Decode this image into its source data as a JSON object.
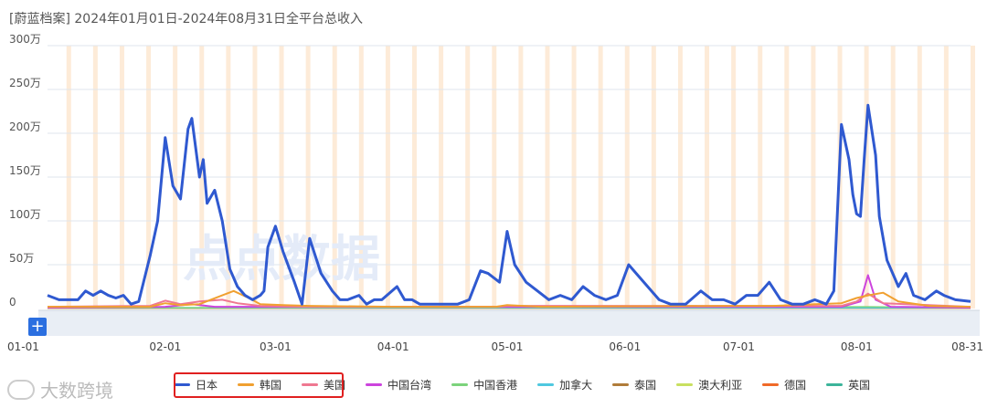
{
  "title": "[蔚蓝档案]  2024年01月01日-2024年08月31日全平台总收入",
  "watermark_center": "点点数据",
  "watermark_bottom": "大数跨境",
  "add_button": "+",
  "chart_data": {
    "type": "line",
    "title": "[蔚蓝档案]  2024年01月01日-2024年08月31日全平台总收入",
    "ylim": [
      0,
      3000000
    ],
    "yticks": [
      {
        "value": 0,
        "label": "0"
      },
      {
        "value": 500000,
        "label": "50万"
      },
      {
        "value": 1000000,
        "label": "100万"
      },
      {
        "value": 1500000,
        "label": "150万"
      },
      {
        "value": 2000000,
        "label": "200万"
      },
      {
        "value": 2500000,
        "label": "250万"
      },
      {
        "value": 3000000,
        "label": "300万"
      }
    ],
    "xrange": [
      "2024-01-01",
      "2024-08-31"
    ],
    "xticks": [
      {
        "date": "2024-01-01",
        "label": "01-01"
      },
      {
        "date": "2024-02-01",
        "label": "02-01"
      },
      {
        "date": "2024-03-01",
        "label": "03-01"
      },
      {
        "date": "2024-04-01",
        "label": "04-01"
      },
      {
        "date": "2024-05-01",
        "label": "05-01"
      },
      {
        "date": "2024-06-01",
        "label": "06-01"
      },
      {
        "date": "2024-07-01",
        "label": "07-01"
      },
      {
        "date": "2024-08-01",
        "label": "08-01"
      },
      {
        "date": "2024-08-31",
        "label": "08-31"
      }
    ],
    "grid": true,
    "legend_position": "bottom",
    "event_bands_color": "#fdebd8",
    "series": [
      {
        "name": "日本",
        "color": "#2f59d0",
        "width": 3,
        "highlighted": true,
        "points": [
          [
            "2024-01-01",
            150000
          ],
          [
            "2024-01-04",
            100000
          ],
          [
            "2024-01-06",
            100000
          ],
          [
            "2024-01-09",
            100000
          ],
          [
            "2024-01-11",
            200000
          ],
          [
            "2024-01-13",
            150000
          ],
          [
            "2024-01-15",
            200000
          ],
          [
            "2024-01-17",
            150000
          ],
          [
            "2024-01-19",
            120000
          ],
          [
            "2024-01-21",
            150000
          ],
          [
            "2024-01-23",
            50000
          ],
          [
            "2024-01-25",
            80000
          ],
          [
            "2024-01-28",
            600000
          ],
          [
            "2024-01-30",
            1000000
          ],
          [
            "2024-02-01",
            1950000
          ],
          [
            "2024-02-03",
            1400000
          ],
          [
            "2024-02-05",
            1250000
          ],
          [
            "2024-02-07",
            2050000
          ],
          [
            "2024-02-08",
            2170000
          ],
          [
            "2024-02-10",
            1500000
          ],
          [
            "2024-02-11",
            1700000
          ],
          [
            "2024-02-12",
            1200000
          ],
          [
            "2024-02-14",
            1350000
          ],
          [
            "2024-02-16",
            1000000
          ],
          [
            "2024-02-18",
            450000
          ],
          [
            "2024-02-20",
            250000
          ],
          [
            "2024-02-22",
            150000
          ],
          [
            "2024-02-24",
            100000
          ],
          [
            "2024-02-26",
            150000
          ],
          [
            "2024-02-27",
            200000
          ],
          [
            "2024-02-28",
            700000
          ],
          [
            "2024-03-01",
            940000
          ],
          [
            "2024-03-03",
            650000
          ],
          [
            "2024-03-06",
            300000
          ],
          [
            "2024-03-08",
            50000
          ],
          [
            "2024-03-10",
            800000
          ],
          [
            "2024-03-13",
            400000
          ],
          [
            "2024-03-16",
            200000
          ],
          [
            "2024-03-18",
            100000
          ],
          [
            "2024-03-20",
            100000
          ],
          [
            "2024-03-23",
            150000
          ],
          [
            "2024-03-25",
            50000
          ],
          [
            "2024-03-27",
            100000
          ],
          [
            "2024-03-29",
            100000
          ],
          [
            "2024-04-02",
            250000
          ],
          [
            "2024-04-04",
            100000
          ],
          [
            "2024-04-06",
            100000
          ],
          [
            "2024-04-08",
            50000
          ],
          [
            "2024-04-12",
            50000
          ],
          [
            "2024-04-15",
            50000
          ],
          [
            "2024-04-18",
            50000
          ],
          [
            "2024-04-21",
            100000
          ],
          [
            "2024-04-24",
            430000
          ],
          [
            "2024-04-26",
            400000
          ],
          [
            "2024-04-29",
            300000
          ],
          [
            "2024-05-01",
            880000
          ],
          [
            "2024-05-03",
            500000
          ],
          [
            "2024-05-06",
            300000
          ],
          [
            "2024-05-09",
            200000
          ],
          [
            "2024-05-12",
            100000
          ],
          [
            "2024-05-15",
            150000
          ],
          [
            "2024-05-18",
            100000
          ],
          [
            "2024-05-21",
            250000
          ],
          [
            "2024-05-24",
            150000
          ],
          [
            "2024-05-27",
            100000
          ],
          [
            "2024-05-30",
            150000
          ],
          [
            "2024-06-02",
            500000
          ],
          [
            "2024-06-04",
            400000
          ],
          [
            "2024-06-07",
            250000
          ],
          [
            "2024-06-10",
            100000
          ],
          [
            "2024-06-13",
            50000
          ],
          [
            "2024-06-17",
            50000
          ],
          [
            "2024-06-21",
            200000
          ],
          [
            "2024-06-24",
            100000
          ],
          [
            "2024-06-27",
            100000
          ],
          [
            "2024-06-30",
            50000
          ],
          [
            "2024-07-03",
            150000
          ],
          [
            "2024-07-06",
            150000
          ],
          [
            "2024-07-09",
            300000
          ],
          [
            "2024-07-12",
            100000
          ],
          [
            "2024-07-15",
            50000
          ],
          [
            "2024-07-18",
            50000
          ],
          [
            "2024-07-21",
            100000
          ],
          [
            "2024-07-24",
            50000
          ],
          [
            "2024-07-26",
            200000
          ],
          [
            "2024-07-28",
            2100000
          ],
          [
            "2024-07-30",
            1700000
          ],
          [
            "2024-07-31",
            1300000
          ],
          [
            "2024-08-01",
            1080000
          ],
          [
            "2024-08-02",
            1050000
          ],
          [
            "2024-08-03",
            1700000
          ],
          [
            "2024-08-04",
            2320000
          ],
          [
            "2024-08-06",
            1750000
          ],
          [
            "2024-08-07",
            1050000
          ],
          [
            "2024-08-09",
            550000
          ],
          [
            "2024-08-11",
            350000
          ],
          [
            "2024-08-12",
            250000
          ],
          [
            "2024-08-14",
            400000
          ],
          [
            "2024-08-16",
            150000
          ],
          [
            "2024-08-19",
            100000
          ],
          [
            "2024-08-22",
            200000
          ],
          [
            "2024-08-24",
            150000
          ],
          [
            "2024-08-27",
            100000
          ],
          [
            "2024-08-31",
            80000
          ]
        ]
      },
      {
        "name": "韩国",
        "color": "#f0a030",
        "width": 2,
        "highlighted": true,
        "points": [
          [
            "2024-01-01",
            20000
          ],
          [
            "2024-01-28",
            20000
          ],
          [
            "2024-02-01",
            60000
          ],
          [
            "2024-02-05",
            40000
          ],
          [
            "2024-02-10",
            50000
          ],
          [
            "2024-02-16",
            150000
          ],
          [
            "2024-02-19",
            200000
          ],
          [
            "2024-02-23",
            120000
          ],
          [
            "2024-02-26",
            50000
          ],
          [
            "2024-03-03",
            40000
          ],
          [
            "2024-03-10",
            30000
          ],
          [
            "2024-04-01",
            20000
          ],
          [
            "2024-04-28",
            20000
          ],
          [
            "2024-05-01",
            40000
          ],
          [
            "2024-05-10",
            20000
          ],
          [
            "2024-07-01",
            30000
          ],
          [
            "2024-07-10",
            30000
          ],
          [
            "2024-07-28",
            60000
          ],
          [
            "2024-08-01",
            120000
          ],
          [
            "2024-08-04",
            150000
          ],
          [
            "2024-08-08",
            180000
          ],
          [
            "2024-08-12",
            80000
          ],
          [
            "2024-08-20",
            30000
          ],
          [
            "2024-08-31",
            20000
          ]
        ]
      },
      {
        "name": "美国",
        "color": "#ef7891",
        "width": 2,
        "highlighted": true,
        "points": [
          [
            "2024-01-01",
            20000
          ],
          [
            "2024-01-28",
            30000
          ],
          [
            "2024-02-01",
            90000
          ],
          [
            "2024-02-05",
            50000
          ],
          [
            "2024-02-10",
            80000
          ],
          [
            "2024-02-16",
            100000
          ],
          [
            "2024-02-20",
            60000
          ],
          [
            "2024-02-26",
            30000
          ],
          [
            "2024-03-10",
            20000
          ],
          [
            "2024-04-28",
            20000
          ],
          [
            "2024-05-01",
            30000
          ],
          [
            "2024-07-28",
            30000
          ],
          [
            "2024-08-01",
            80000
          ],
          [
            "2024-08-04",
            170000
          ],
          [
            "2024-08-08",
            60000
          ],
          [
            "2024-08-31",
            20000
          ]
        ]
      },
      {
        "name": "中国台湾",
        "color": "#cc44dd",
        "width": 2,
        "points": [
          [
            "2024-01-01",
            10000
          ],
          [
            "2024-02-01",
            20000
          ],
          [
            "2024-02-08",
            50000
          ],
          [
            "2024-02-14",
            20000
          ],
          [
            "2024-07-28",
            20000
          ],
          [
            "2024-08-02",
            80000
          ],
          [
            "2024-08-04",
            380000
          ],
          [
            "2024-08-06",
            100000
          ],
          [
            "2024-08-10",
            20000
          ],
          [
            "2024-08-31",
            10000
          ]
        ]
      },
      {
        "name": "中国香港",
        "color": "#7cd37c",
        "width": 1.5,
        "points": [
          [
            "2024-01-01",
            8000
          ],
          [
            "2024-08-04",
            20000
          ],
          [
            "2024-08-31",
            8000
          ]
        ]
      },
      {
        "name": "加拿大",
        "color": "#4fc8e0",
        "width": 1.5,
        "points": [
          [
            "2024-01-01",
            8000
          ],
          [
            "2024-08-31",
            8000
          ]
        ]
      },
      {
        "name": "泰国",
        "color": "#b07c3a",
        "width": 1.5,
        "points": [
          [
            "2024-01-01",
            5000
          ],
          [
            "2024-08-31",
            5000
          ]
        ]
      },
      {
        "name": "澳大利亚",
        "color": "#c8e060",
        "width": 1.5,
        "points": [
          [
            "2024-01-01",
            5000
          ],
          [
            "2024-08-31",
            5000
          ]
        ]
      },
      {
        "name": "德国",
        "color": "#f06a28",
        "width": 1.5,
        "points": [
          [
            "2024-01-01",
            5000
          ],
          [
            "2024-08-31",
            5000
          ]
        ]
      },
      {
        "name": "英国",
        "color": "#3cb49a",
        "width": 1.5,
        "points": [
          [
            "2024-01-01",
            5000
          ],
          [
            "2024-08-31",
            5000
          ]
        ]
      }
    ]
  }
}
